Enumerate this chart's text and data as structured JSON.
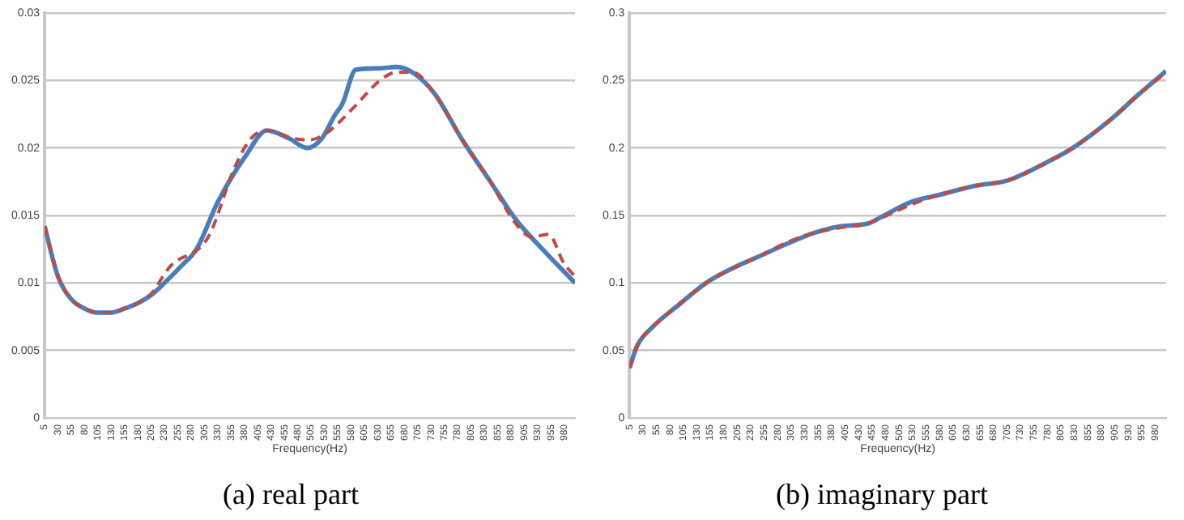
{
  "chart_data": [
    {
      "type": "line",
      "title": "(a) real part",
      "xlabel": "Frequency(Hz)",
      "xlim": [
        5,
        1000
      ],
      "xticks": [
        5,
        30,
        55,
        80,
        105,
        130,
        155,
        180,
        205,
        230,
        255,
        280,
        305,
        330,
        355,
        380,
        405,
        430,
        455,
        480,
        505,
        530,
        555,
        580,
        605,
        630,
        655,
        680,
        705,
        730,
        755,
        780,
        805,
        830,
        855,
        880,
        905,
        930,
        955,
        980
      ],
      "ylim": [
        0,
        0.03
      ],
      "yticks": [
        0,
        0.005,
        0.01,
        0.015,
        0.02,
        0.025,
        0.03
      ],
      "grid": "y",
      "legend": false,
      "marker": "none",
      "series": [
        {
          "color": "#4a7ebb",
          "line_style": "solid",
          "x": [
            5,
            30,
            55,
            80,
            105,
            130,
            155,
            180,
            205,
            230,
            260,
            290,
            330,
            382,
            422,
            464,
            498,
            525,
            549,
            564,
            589,
            634,
            665,
            695,
            737,
            787,
            838,
            889,
            939,
            1000
          ],
          "values": [
            0.0142,
            0.0105,
            0.0088,
            0.0081,
            0.0078,
            0.0078,
            0.0081,
            0.0085,
            0.0091,
            0.01,
            0.0112,
            0.0125,
            0.016,
            0.0194,
            0.0213,
            0.0207,
            0.02,
            0.0207,
            0.0224,
            0.0233,
            0.0258,
            0.0259,
            0.026,
            0.0256,
            0.024,
            0.0207,
            0.0177,
            0.0147,
            0.0125,
            0.01
          ]
        },
        {
          "color": "#be4b48",
          "line_style": "dashed",
          "x": [
            5,
            30,
            55,
            80,
            105,
            130,
            155,
            180,
            205,
            240,
            312,
            361,
            392,
            422,
            473,
            503,
            534,
            585,
            634,
            665,
            695,
            737,
            787,
            838,
            889,
            919,
            950,
            980,
            1000
          ],
          "values": [
            0.0142,
            0.0105,
            0.0088,
            0.0081,
            0.0078,
            0.0078,
            0.0081,
            0.0085,
            0.0092,
            0.0112,
            0.0134,
            0.0185,
            0.0207,
            0.0213,
            0.0207,
            0.0206,
            0.0211,
            0.023,
            0.025,
            0.0256,
            0.0256,
            0.024,
            0.0207,
            0.0177,
            0.0144,
            0.0134,
            0.0136,
            0.0114,
            0.0105
          ]
        }
      ]
    },
    {
      "type": "line",
      "title": "(b) imaginary part",
      "xlabel": "Frequency(Hz)",
      "xlim": [
        5,
        1000
      ],
      "xticks": [
        5,
        30,
        55,
        80,
        105,
        130,
        155,
        180,
        205,
        230,
        255,
        280,
        305,
        330,
        355,
        380,
        405,
        430,
        455,
        480,
        505,
        530,
        555,
        580,
        605,
        630,
        655,
        680,
        705,
        730,
        755,
        780,
        805,
        830,
        855,
        880,
        905,
        930,
        955,
        980
      ],
      "ylim": [
        0,
        0.3
      ],
      "yticks": [
        0,
        0.05,
        0.1,
        0.15,
        0.2,
        0.25,
        0.3
      ],
      "grid": "y",
      "legend": false,
      "marker": "none",
      "series": [
        {
          "color": "#4a7ebb",
          "line_style": "solid",
          "x": [
            5,
            20,
            47,
            97,
            147,
            197,
            247,
            297,
            347,
            397,
            447,
            477,
            527,
            577,
            647,
            707,
            777,
            827,
            897,
            947,
            1000
          ],
          "values": [
            0.037,
            0.054,
            0.067,
            0.084,
            0.1,
            0.111,
            0.12,
            0.129,
            0.137,
            0.142,
            0.144,
            0.15,
            0.16,
            0.165,
            0.172,
            0.176,
            0.189,
            0.2,
            0.221,
            0.239,
            0.257
          ]
        },
        {
          "color": "#be4b48",
          "line_style": "dashed",
          "x": [
            5,
            20,
            47,
            97,
            147,
            197,
            247,
            297,
            347,
            397,
            447,
            477,
            527,
            577,
            647,
            707,
            777,
            827,
            897,
            947,
            1000
          ],
          "values": [
            0.037,
            0.054,
            0.067,
            0.084,
            0.1,
            0.111,
            0.12,
            0.13,
            0.137,
            0.141,
            0.144,
            0.149,
            0.158,
            0.165,
            0.172,
            0.176,
            0.189,
            0.2,
            0.221,
            0.239,
            0.256
          ]
        }
      ]
    }
  ]
}
